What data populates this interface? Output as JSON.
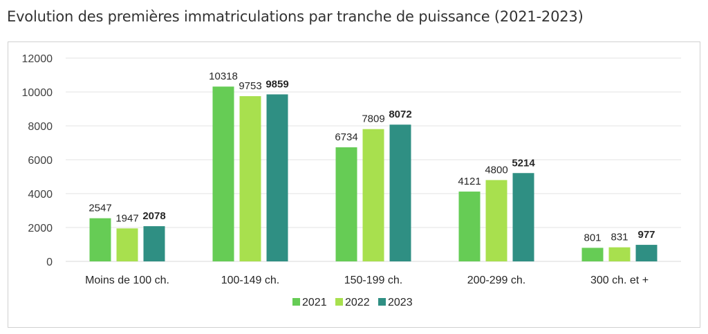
{
  "chart_data": {
    "type": "bar",
    "title": "Evolution des premières immatriculations par tranche de puissance (2021-2023)",
    "categories": [
      "Moins de 100 ch.",
      "100-149 ch.",
      "150-199 ch.",
      "200-299 ch.",
      "300 ch. et +"
    ],
    "series": [
      {
        "name": "2021",
        "values": [
          2547,
          10318,
          6734,
          4121,
          801
        ],
        "color": "#66cc55"
      },
      {
        "name": "2022",
        "values": [
          1947,
          9753,
          7809,
          4800,
          831
        ],
        "color": "#a8e04e"
      },
      {
        "name": "2023",
        "values": [
          2078,
          9859,
          8072,
          5214,
          977
        ],
        "color": "#2f8f83"
      }
    ],
    "ylim": [
      0,
      12000
    ],
    "yticks": [
      0,
      2000,
      4000,
      6000,
      8000,
      10000,
      12000
    ],
    "grid": true,
    "legend": "bottom-center",
    "bold_series": "2023"
  }
}
